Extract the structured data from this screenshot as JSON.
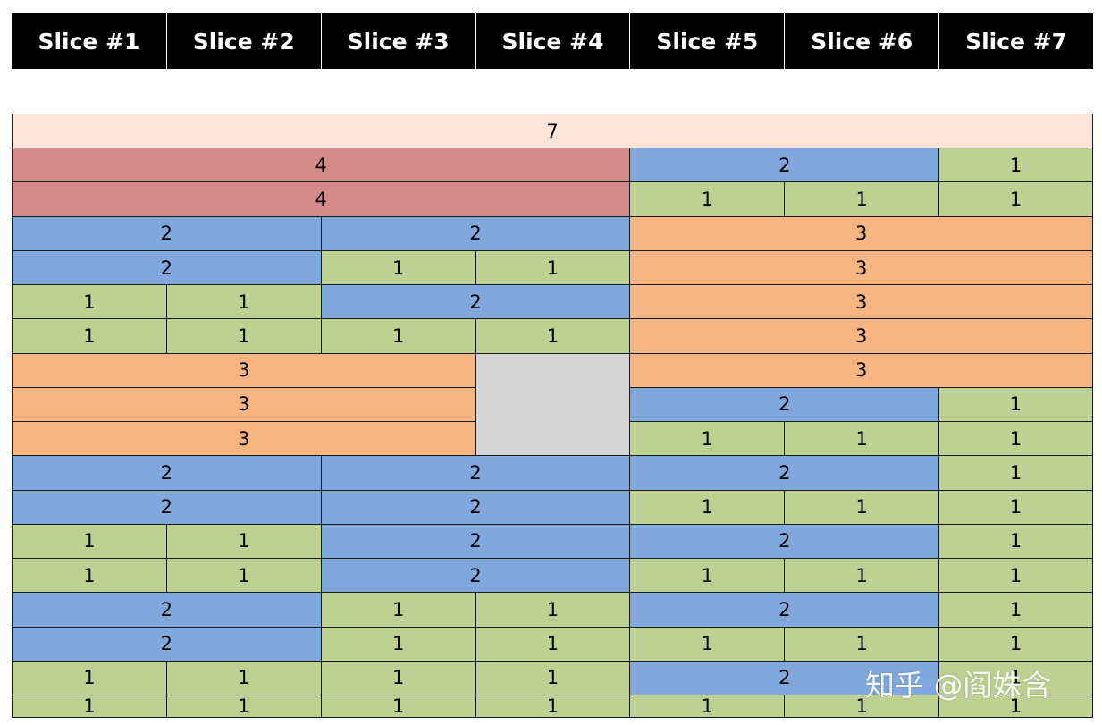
{
  "header": {
    "columns": [
      "Slice #1",
      "Slice #2",
      "Slice #3",
      "Slice #4",
      "Slice #5",
      "Slice #6",
      "Slice #7"
    ]
  },
  "colors": {
    "header_bg": "#000000",
    "size_7": "#fce5d6",
    "size_4": "#d58a8a",
    "size_3": "#f8b584",
    "size_2": "#80a8dc",
    "size_1": "#bdd292",
    "empty": "#d5d5d5"
  },
  "rows": [
    [
      {
        "label": "7",
        "span": 7,
        "size": 7
      }
    ],
    [
      {
        "label": "4",
        "span": 4,
        "size": 4
      },
      {
        "label": "2",
        "span": 2,
        "size": 2
      },
      {
        "label": "1",
        "span": 1,
        "size": 1
      }
    ],
    [
      {
        "label": "4",
        "span": 4,
        "size": 4
      },
      {
        "label": "1",
        "span": 1,
        "size": 1
      },
      {
        "label": "1",
        "span": 1,
        "size": 1
      },
      {
        "label": "1",
        "span": 1,
        "size": 1
      }
    ],
    [
      {
        "label": "2",
        "span": 2,
        "size": 2
      },
      {
        "label": "2",
        "span": 2,
        "size": 2
      },
      {
        "label": "3",
        "span": 3,
        "size": 3
      }
    ],
    [
      {
        "label": "2",
        "span": 2,
        "size": 2
      },
      {
        "label": "1",
        "span": 1,
        "size": 1
      },
      {
        "label": "1",
        "span": 1,
        "size": 1
      },
      {
        "label": "3",
        "span": 3,
        "size": 3
      }
    ],
    [
      {
        "label": "1",
        "span": 1,
        "size": 1
      },
      {
        "label": "1",
        "span": 1,
        "size": 1
      },
      {
        "label": "2",
        "span": 2,
        "size": 2
      },
      {
        "label": "3",
        "span": 3,
        "size": 3
      }
    ],
    [
      {
        "label": "1",
        "span": 1,
        "size": 1
      },
      {
        "label": "1",
        "span": 1,
        "size": 1
      },
      {
        "label": "1",
        "span": 1,
        "size": 1
      },
      {
        "label": "1",
        "span": 1,
        "size": 1
      },
      {
        "label": "3",
        "span": 3,
        "size": 3
      }
    ],
    [
      {
        "label": "3",
        "span": 3,
        "size": 3
      },
      {
        "label": "",
        "span": 1,
        "size": 0,
        "empty": true
      },
      {
        "label": "3",
        "span": 3,
        "size": 3
      }
    ],
    [
      {
        "label": "3",
        "span": 3,
        "size": 3
      },
      {
        "label": "",
        "span": 1,
        "size": 0,
        "empty": true
      },
      {
        "label": "2",
        "span": 2,
        "size": 2
      },
      {
        "label": "1",
        "span": 1,
        "size": 1
      }
    ],
    [
      {
        "label": "3",
        "span": 3,
        "size": 3
      },
      {
        "label": "",
        "span": 1,
        "size": 0,
        "empty": true
      },
      {
        "label": "1",
        "span": 1,
        "size": 1
      },
      {
        "label": "1",
        "span": 1,
        "size": 1
      },
      {
        "label": "1",
        "span": 1,
        "size": 1
      }
    ],
    [
      {
        "label": "2",
        "span": 2,
        "size": 2
      },
      {
        "label": "2",
        "span": 2,
        "size": 2
      },
      {
        "label": "2",
        "span": 2,
        "size": 2
      },
      {
        "label": "1",
        "span": 1,
        "size": 1
      }
    ],
    [
      {
        "label": "2",
        "span": 2,
        "size": 2
      },
      {
        "label": "2",
        "span": 2,
        "size": 2
      },
      {
        "label": "1",
        "span": 1,
        "size": 1
      },
      {
        "label": "1",
        "span": 1,
        "size": 1
      },
      {
        "label": "1",
        "span": 1,
        "size": 1
      }
    ],
    [
      {
        "label": "1",
        "span": 1,
        "size": 1
      },
      {
        "label": "1",
        "span": 1,
        "size": 1
      },
      {
        "label": "2",
        "span": 2,
        "size": 2
      },
      {
        "label": "2",
        "span": 2,
        "size": 2
      },
      {
        "label": "1",
        "span": 1,
        "size": 1
      }
    ],
    [
      {
        "label": "1",
        "span": 1,
        "size": 1
      },
      {
        "label": "1",
        "span": 1,
        "size": 1
      },
      {
        "label": "2",
        "span": 2,
        "size": 2
      },
      {
        "label": "1",
        "span": 1,
        "size": 1
      },
      {
        "label": "1",
        "span": 1,
        "size": 1
      },
      {
        "label": "1",
        "span": 1,
        "size": 1
      }
    ],
    [
      {
        "label": "2",
        "span": 2,
        "size": 2
      },
      {
        "label": "1",
        "span": 1,
        "size": 1
      },
      {
        "label": "1",
        "span": 1,
        "size": 1
      },
      {
        "label": "2",
        "span": 2,
        "size": 2
      },
      {
        "label": "1",
        "span": 1,
        "size": 1
      }
    ],
    [
      {
        "label": "2",
        "span": 2,
        "size": 2
      },
      {
        "label": "1",
        "span": 1,
        "size": 1
      },
      {
        "label": "1",
        "span": 1,
        "size": 1
      },
      {
        "label": "1",
        "span": 1,
        "size": 1
      },
      {
        "label": "1",
        "span": 1,
        "size": 1
      },
      {
        "label": "1",
        "span": 1,
        "size": 1
      }
    ],
    [
      {
        "label": "1",
        "span": 1,
        "size": 1
      },
      {
        "label": "1",
        "span": 1,
        "size": 1
      },
      {
        "label": "1",
        "span": 1,
        "size": 1
      },
      {
        "label": "1",
        "span": 1,
        "size": 1
      },
      {
        "label": "2",
        "span": 2,
        "size": 2
      },
      {
        "label": "1",
        "span": 1,
        "size": 1
      }
    ],
    [
      {
        "label": "1",
        "span": 1,
        "size": 1
      },
      {
        "label": "1",
        "span": 1,
        "size": 1
      },
      {
        "label": "1",
        "span": 1,
        "size": 1
      },
      {
        "label": "1",
        "span": 1,
        "size": 1
      },
      {
        "label": "1",
        "span": 1,
        "size": 1
      },
      {
        "label": "1",
        "span": 1,
        "size": 1
      },
      {
        "label": "1",
        "span": 1,
        "size": 1
      }
    ]
  ],
  "watermark": "知乎 @阎姝含"
}
